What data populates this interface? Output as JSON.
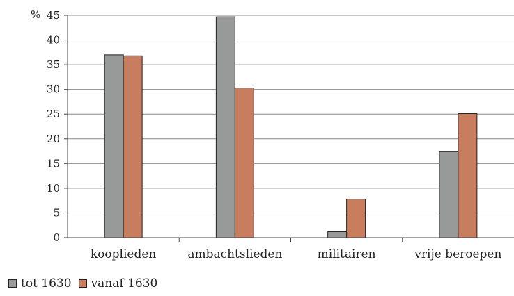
{
  "chart_data": {
    "type": "bar",
    "ylabel": "%",
    "categories": [
      "kooplieden",
      "ambachtslieden",
      "militairen",
      "vrije beroepen"
    ],
    "series": [
      {
        "name": "tot 1630",
        "color": "#979a99",
        "values": [
          37.0,
          44.7,
          1.2,
          17.4
        ]
      },
      {
        "name": "vanaf 1630",
        "color": "#c97d5f",
        "values": [
          36.8,
          30.3,
          7.8,
          25.1
        ]
      }
    ],
    "ylim": [
      0,
      45
    ],
    "yticks": [
      0,
      5,
      10,
      15,
      20,
      25,
      30,
      35,
      40,
      45
    ],
    "grid": true,
    "legend_position": "bottom-left"
  }
}
